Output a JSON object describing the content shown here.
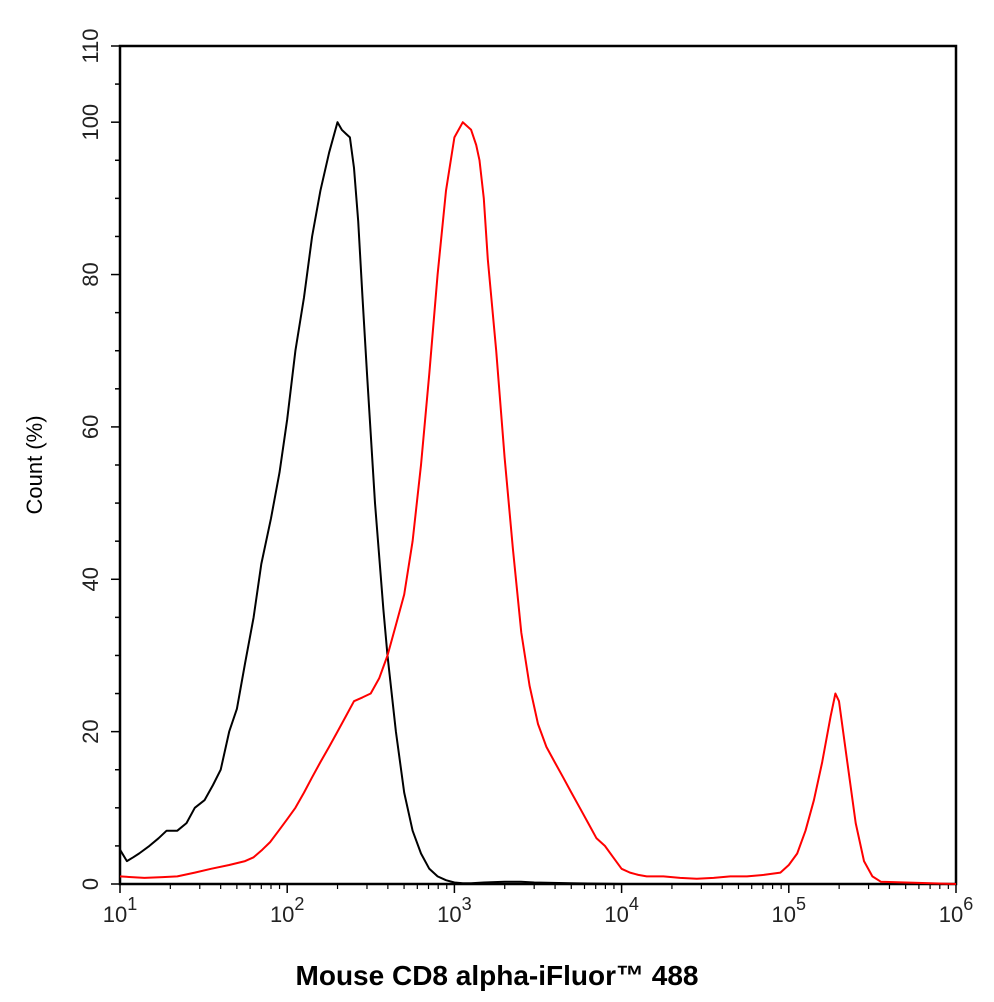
{
  "chart_data": {
    "type": "line",
    "title": "",
    "xlabel": "Mouse CD8 alpha-iFluor™ 488",
    "ylabel": "Count  (%)",
    "xscale": "log",
    "xlim": [
      10,
      1000000
    ],
    "ylim": [
      0,
      110
    ],
    "grid": false,
    "legend": "none",
    "y_ticks": [
      0,
      20,
      40,
      60,
      80,
      100,
      110
    ],
    "y_tick_labels": [
      "0",
      "20",
      "40",
      "60",
      "80",
      "100",
      "110"
    ],
    "x_ticks": [
      {
        "base": "10",
        "exp": "1"
      },
      {
        "base": "10",
        "exp": "2"
      },
      {
        "base": "10",
        "exp": "3"
      },
      {
        "base": "10",
        "exp": "4"
      },
      {
        "base": "10",
        "exp": "5"
      },
      {
        "base": "10",
        "exp": "6"
      }
    ],
    "series": [
      {
        "color": "#000000",
        "x": [
          10,
          11,
          12,
          13,
          15,
          17,
          19,
          22,
          25,
          28,
          32,
          36,
          40,
          45,
          50,
          56,
          63,
          70,
          80,
          90,
          100,
          112,
          126,
          141,
          158,
          178,
          200,
          212,
          224,
          237,
          251,
          266,
          282,
          300,
          335,
          376,
          398,
          447,
          501,
          562,
          631,
          708,
          794,
          891,
          1000,
          1122,
          1259,
          1500,
          2000,
          2500,
          3000,
          5000,
          10000,
          100000,
          1000000
        ],
        "values": [
          4.5,
          3,
          3.5,
          4,
          5,
          6,
          7,
          7,
          8,
          10,
          11,
          13,
          15,
          20,
          23,
          29,
          35,
          42,
          48,
          54,
          61,
          70,
          77,
          85,
          91,
          96,
          100,
          99,
          98.5,
          98,
          94,
          87,
          77,
          67,
          50,
          36,
          30,
          20,
          12,
          7,
          4,
          2,
          1,
          0.5,
          0.2,
          0.1,
          0.1,
          0.2,
          0.3,
          0.3,
          0.2,
          0.1,
          0,
          0,
          0
        ]
      },
      {
        "color": "#ff0000",
        "x": [
          10,
          14,
          18,
          22,
          28,
          35,
          45,
          56,
          63,
          71,
          79,
          89,
          100,
          112,
          126,
          141,
          158,
          178,
          200,
          224,
          251,
          282,
          316,
          355,
          398,
          447,
          501,
          562,
          631,
          708,
          794,
          891,
          1000,
          1122,
          1259,
          1350,
          1413,
          1500,
          1585,
          1778,
          1995,
          2239,
          2512,
          2818,
          3162,
          3548,
          3981,
          4467,
          5012,
          5623,
          6310,
          7079,
          7943,
          8913,
          10000,
          11220,
          12589,
          14125,
          15849,
          17783,
          22387,
          28184,
          35481,
          44668,
          56234,
          70795,
          89125,
          100000,
          112202,
          125893,
          141254,
          158489,
          177828,
          190000,
          199526,
          223872,
          251189,
          281838,
          316228,
          354813,
          1000000
        ],
        "values": [
          1,
          0.8,
          0.9,
          1,
          1.5,
          2,
          2.5,
          3,
          3.5,
          4.5,
          5.5,
          7,
          8.5,
          10,
          12,
          14,
          16,
          18,
          20,
          22,
          24,
          24.5,
          25,
          27,
          30,
          34,
          38,
          45,
          55,
          67,
          80,
          91,
          98,
          100,
          99,
          97,
          95,
          90,
          82,
          70,
          56,
          44,
          33,
          26,
          21,
          18,
          16,
          14,
          12,
          10,
          8,
          6,
          5,
          3.5,
          2,
          1.5,
          1.2,
          1,
          1,
          1,
          0.8,
          0.7,
          0.8,
          1,
          1,
          1.2,
          1.5,
          2.5,
          4,
          7,
          11,
          16,
          22,
          25,
          24,
          16,
          8,
          3,
          1,
          0.3,
          0
        ]
      }
    ]
  }
}
